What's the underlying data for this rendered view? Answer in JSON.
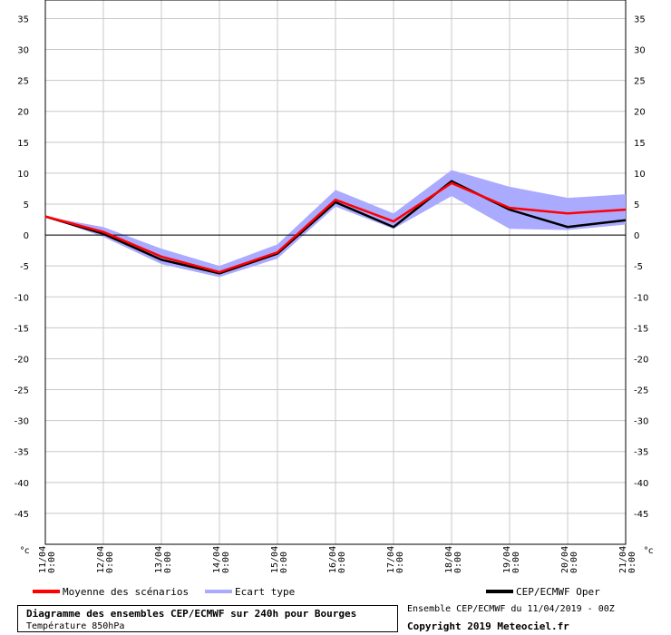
{
  "chart_data": {
    "type": "line",
    "title": "Diagramme des ensembles CEP/ECMWF sur 240h pour Bourges",
    "subtitle": "Température 850hPa",
    "unit_label": "°c",
    "ylim": [
      -50,
      38
    ],
    "yticks": [
      35,
      30,
      25,
      20,
      15,
      10,
      5,
      0,
      -5,
      -10,
      -15,
      -20,
      -25,
      -30,
      -35,
      -40,
      -45
    ],
    "grid": true,
    "x_dates": [
      "11/04",
      "12/04",
      "13/04",
      "14/04",
      "15/04",
      "16/04",
      "17/04",
      "18/04",
      "19/04",
      "20/04",
      "21/04"
    ],
    "x_times": [
      "0:00",
      "0:00",
      "0:00",
      "0:00",
      "0:00",
      "0:00",
      "0:00",
      "0:00",
      "0:00",
      "0:00",
      "0:00"
    ],
    "mean": [
      3.0,
      0.5,
      -3.5,
      -6.0,
      -2.8,
      5.7,
      2.2,
      8.4,
      4.4,
      3.5,
      4.1
    ],
    "oper": [
      3.0,
      0.2,
      -4.0,
      -6.2,
      -3.0,
      5.3,
      1.3,
      8.7,
      4.1,
      1.3,
      2.4
    ],
    "spread_upper": [
      3.0,
      1.3,
      -2.2,
      -5.0,
      -1.5,
      7.3,
      3.5,
      10.5,
      7.8,
      6.0,
      6.6
    ],
    "spread_lower": [
      3.0,
      -0.3,
      -4.7,
      -6.8,
      -3.8,
      4.6,
      1.0,
      6.3,
      1.0,
      0.8,
      1.7
    ],
    "series": [
      {
        "name": "Moyenne des scénarios",
        "color": "#ff0000"
      },
      {
        "name": "Ecart type",
        "color": "#aaaaff"
      },
      {
        "name": "CEP/ECMWF Oper",
        "color": "#000000"
      }
    ]
  },
  "footer": {
    "title": "Diagramme des ensembles CEP/ECMWF sur 240h pour Bourges",
    "subtitle": "Température 850hPa",
    "run_info": "Ensemble CEP/ECMWF du 11/04/2019 - 00Z",
    "copyright": "Copyright 2019 Meteociel.fr"
  }
}
